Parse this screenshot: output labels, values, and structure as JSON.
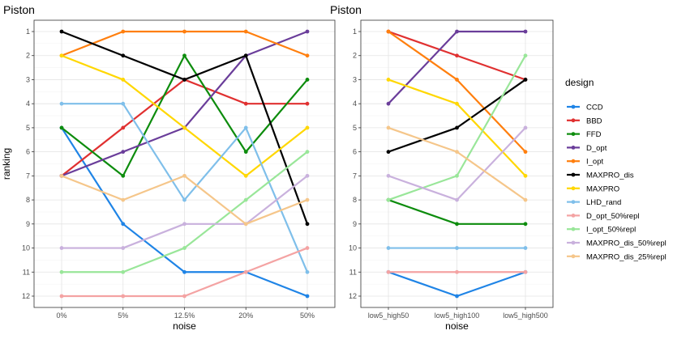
{
  "chart_data": {
    "type": "line",
    "legend": {
      "title": "design",
      "position": "right",
      "entries": [
        {
          "name": "CCD",
          "color": "#1f84e6"
        },
        {
          "name": "BBD",
          "color": "#e03030"
        },
        {
          "name": "FFD",
          "color": "#0d8c0d"
        },
        {
          "name": "D_opt",
          "color": "#6a3d9a"
        },
        {
          "name": "I_opt",
          "color": "#ff7f0e"
        },
        {
          "name": "MAXPRO_dis",
          "color": "#000000"
        },
        {
          "name": "MAXPRO",
          "color": "#ffd700"
        },
        {
          "name": "LHD_rand",
          "color": "#7fbfea"
        },
        {
          "name": "D_opt_50%repl",
          "color": "#f4a3a3"
        },
        {
          "name": "I_opt_50%repl",
          "color": "#99e699"
        },
        {
          "name": "MAXPRO_dis_50%repl",
          "color": "#c9b1dd"
        },
        {
          "name": "MAXPRO_dis_25%repl",
          "color": "#f5c68a"
        }
      ]
    },
    "panels": [
      {
        "title": "Piston",
        "xlabel": "noise",
        "ylabel": "ranking",
        "categories": [
          "0%",
          "5%",
          "12.5%",
          "20%",
          "50%"
        ],
        "y_ticks": [
          "1",
          "2",
          "3",
          "4",
          "5",
          "6",
          "7",
          "8",
          "9",
          "10",
          "11",
          "12"
        ],
        "ylim": [
          1,
          12
        ],
        "y_reversed": true,
        "grid": true,
        "series": [
          {
            "name": "CCD",
            "values": [
              5,
              9,
              11,
              11,
              12
            ]
          },
          {
            "name": "BBD",
            "values": [
              7,
              5,
              3,
              4,
              4
            ]
          },
          {
            "name": "FFD",
            "values": [
              5,
              7,
              2,
              6,
              3
            ]
          },
          {
            "name": "D_opt",
            "values": [
              7,
              6,
              5,
              2,
              1
            ]
          },
          {
            "name": "I_opt",
            "values": [
              2,
              1,
              1,
              1,
              2
            ]
          },
          {
            "name": "MAXPRO_dis",
            "values": [
              1,
              2,
              3,
              2,
              9
            ]
          },
          {
            "name": "MAXPRO",
            "values": [
              2,
              3,
              5,
              7,
              5
            ]
          },
          {
            "name": "LHD_rand",
            "values": [
              4,
              4,
              8,
              5,
              11
            ]
          },
          {
            "name": "D_opt_50%repl",
            "values": [
              12,
              12,
              12,
              11,
              10
            ]
          },
          {
            "name": "I_opt_50%repl",
            "values": [
              11,
              11,
              10,
              8,
              6
            ]
          },
          {
            "name": "MAXPRO_dis_50%repl",
            "values": [
              10,
              10,
              9,
              9,
              7
            ]
          },
          {
            "name": "MAXPRO_dis_25%repl",
            "values": [
              7,
              8,
              7,
              9,
              8
            ]
          }
        ]
      },
      {
        "title": "Piston",
        "xlabel": "noise",
        "ylabel": "",
        "categories": [
          "low5_high50",
          "low5_high100",
          "low5_high500"
        ],
        "y_ticks": [
          "1",
          "2",
          "3",
          "4",
          "5",
          "6",
          "7",
          "8",
          "9",
          "10",
          "11",
          "12"
        ],
        "ylim": [
          1,
          12
        ],
        "y_reversed": true,
        "grid": true,
        "series": [
          {
            "name": "CCD",
            "values": [
              11,
              12,
              11
            ]
          },
          {
            "name": "BBD",
            "values": [
              1,
              2,
              3
            ]
          },
          {
            "name": "FFD",
            "values": [
              8,
              9,
              9
            ]
          },
          {
            "name": "D_opt",
            "values": [
              4,
              1,
              1
            ]
          },
          {
            "name": "I_opt",
            "values": [
              1,
              3,
              6
            ]
          },
          {
            "name": "MAXPRO_dis",
            "values": [
              6,
              5,
              3
            ]
          },
          {
            "name": "MAXPRO",
            "values": [
              3,
              4,
              7
            ]
          },
          {
            "name": "LHD_rand",
            "values": [
              10,
              10,
              10
            ]
          },
          {
            "name": "D_opt_50%repl",
            "values": [
              11,
              11,
              11
            ]
          },
          {
            "name": "I_opt_50%repl",
            "values": [
              8,
              7,
              2
            ]
          },
          {
            "name": "MAXPRO_dis_50%repl",
            "values": [
              7,
              8,
              5
            ]
          },
          {
            "name": "MAXPRO_dis_25%repl",
            "values": [
              5,
              6,
              8
            ]
          }
        ]
      }
    ]
  }
}
